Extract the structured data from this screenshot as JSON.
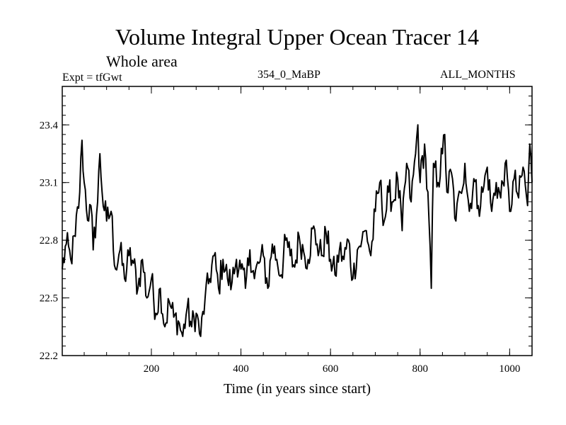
{
  "chart_data": {
    "type": "line",
    "title": "Volume Integral Upper Ocean Tracer 14",
    "subtitle": "Whole area",
    "experiment_label": "Expt = tfGwt",
    "run_label": "354_0_MaBP",
    "months_label": "ALL_MONTHS",
    "xlabel": "Time (in years since start)",
    "ylabel": "",
    "xlim": [
      1,
      1050
    ],
    "ylim": [
      22.2,
      23.6
    ],
    "xticks": [
      200,
      400,
      600,
      800,
      1000
    ],
    "yticks": [
      22.2,
      22.5,
      22.8,
      23.1,
      23.4
    ],
    "xtick_labels": [
      "200",
      "400",
      "600",
      "800",
      "1000"
    ],
    "ytick_labels": [
      "22.2",
      "22.5",
      "22.8",
      "23.1",
      "23.4"
    ],
    "series": [
      {
        "name": "Tracer 14",
        "color": "#000000",
        "x": [
          1,
          10,
          20,
          30,
          40,
          45,
          50,
          60,
          65,
          70,
          80,
          85,
          90,
          100,
          110,
          120,
          130,
          140,
          150,
          160,
          170,
          180,
          190,
          200,
          210,
          220,
          230,
          240,
          250,
          260,
          270,
          280,
          290,
          300,
          310,
          320,
          330,
          340,
          350,
          360,
          370,
          380,
          390,
          400,
          410,
          420,
          430,
          440,
          450,
          460,
          470,
          480,
          490,
          500,
          510,
          520,
          530,
          540,
          550,
          560,
          570,
          580,
          590,
          600,
          610,
          620,
          630,
          640,
          650,
          660,
          670,
          680,
          690,
          700,
          710,
          720,
          730,
          740,
          750,
          760,
          770,
          780,
          790,
          795,
          800,
          810,
          820,
          825,
          830,
          840,
          850,
          855,
          860,
          870,
          880,
          890,
          900,
          910,
          920,
          930,
          940,
          950,
          960,
          970,
          980,
          990,
          1000,
          1010,
          1020,
          1030,
          1040,
          1045,
          1050
        ],
        "y": [
          22.65,
          22.78,
          22.7,
          22.82,
          23.05,
          23.32,
          23.1,
          22.9,
          22.98,
          22.75,
          23.0,
          23.25,
          23.05,
          22.9,
          22.95,
          22.65,
          22.75,
          22.6,
          22.72,
          22.68,
          22.55,
          22.7,
          22.5,
          22.6,
          22.42,
          22.55,
          22.35,
          22.48,
          22.4,
          22.38,
          22.3,
          22.45,
          22.35,
          22.42,
          22.3,
          22.5,
          22.6,
          22.72,
          22.55,
          22.7,
          22.6,
          22.58,
          22.7,
          22.65,
          22.55,
          22.75,
          22.6,
          22.68,
          22.72,
          22.55,
          22.78,
          22.7,
          22.62,
          22.8,
          22.72,
          22.66,
          22.82,
          22.74,
          22.7,
          22.86,
          22.78,
          22.72,
          22.84,
          22.7,
          22.62,
          22.75,
          22.7,
          22.8,
          22.6,
          22.75,
          22.8,
          22.85,
          22.72,
          22.95,
          23.1,
          22.9,
          23.05,
          23.0,
          23.12,
          22.85,
          23.2,
          23.0,
          23.25,
          23.4,
          23.1,
          23.3,
          22.9,
          22.55,
          23.2,
          23.1,
          23.25,
          23.35,
          23.05,
          23.15,
          22.9,
          23.05,
          23.2,
          22.95,
          23.12,
          22.98,
          23.05,
          23.18,
          22.95,
          23.1,
          23.02,
          23.2,
          22.95,
          23.12,
          23.02,
          23.18,
          22.98,
          23.3,
          23.1
        ]
      }
    ]
  }
}
